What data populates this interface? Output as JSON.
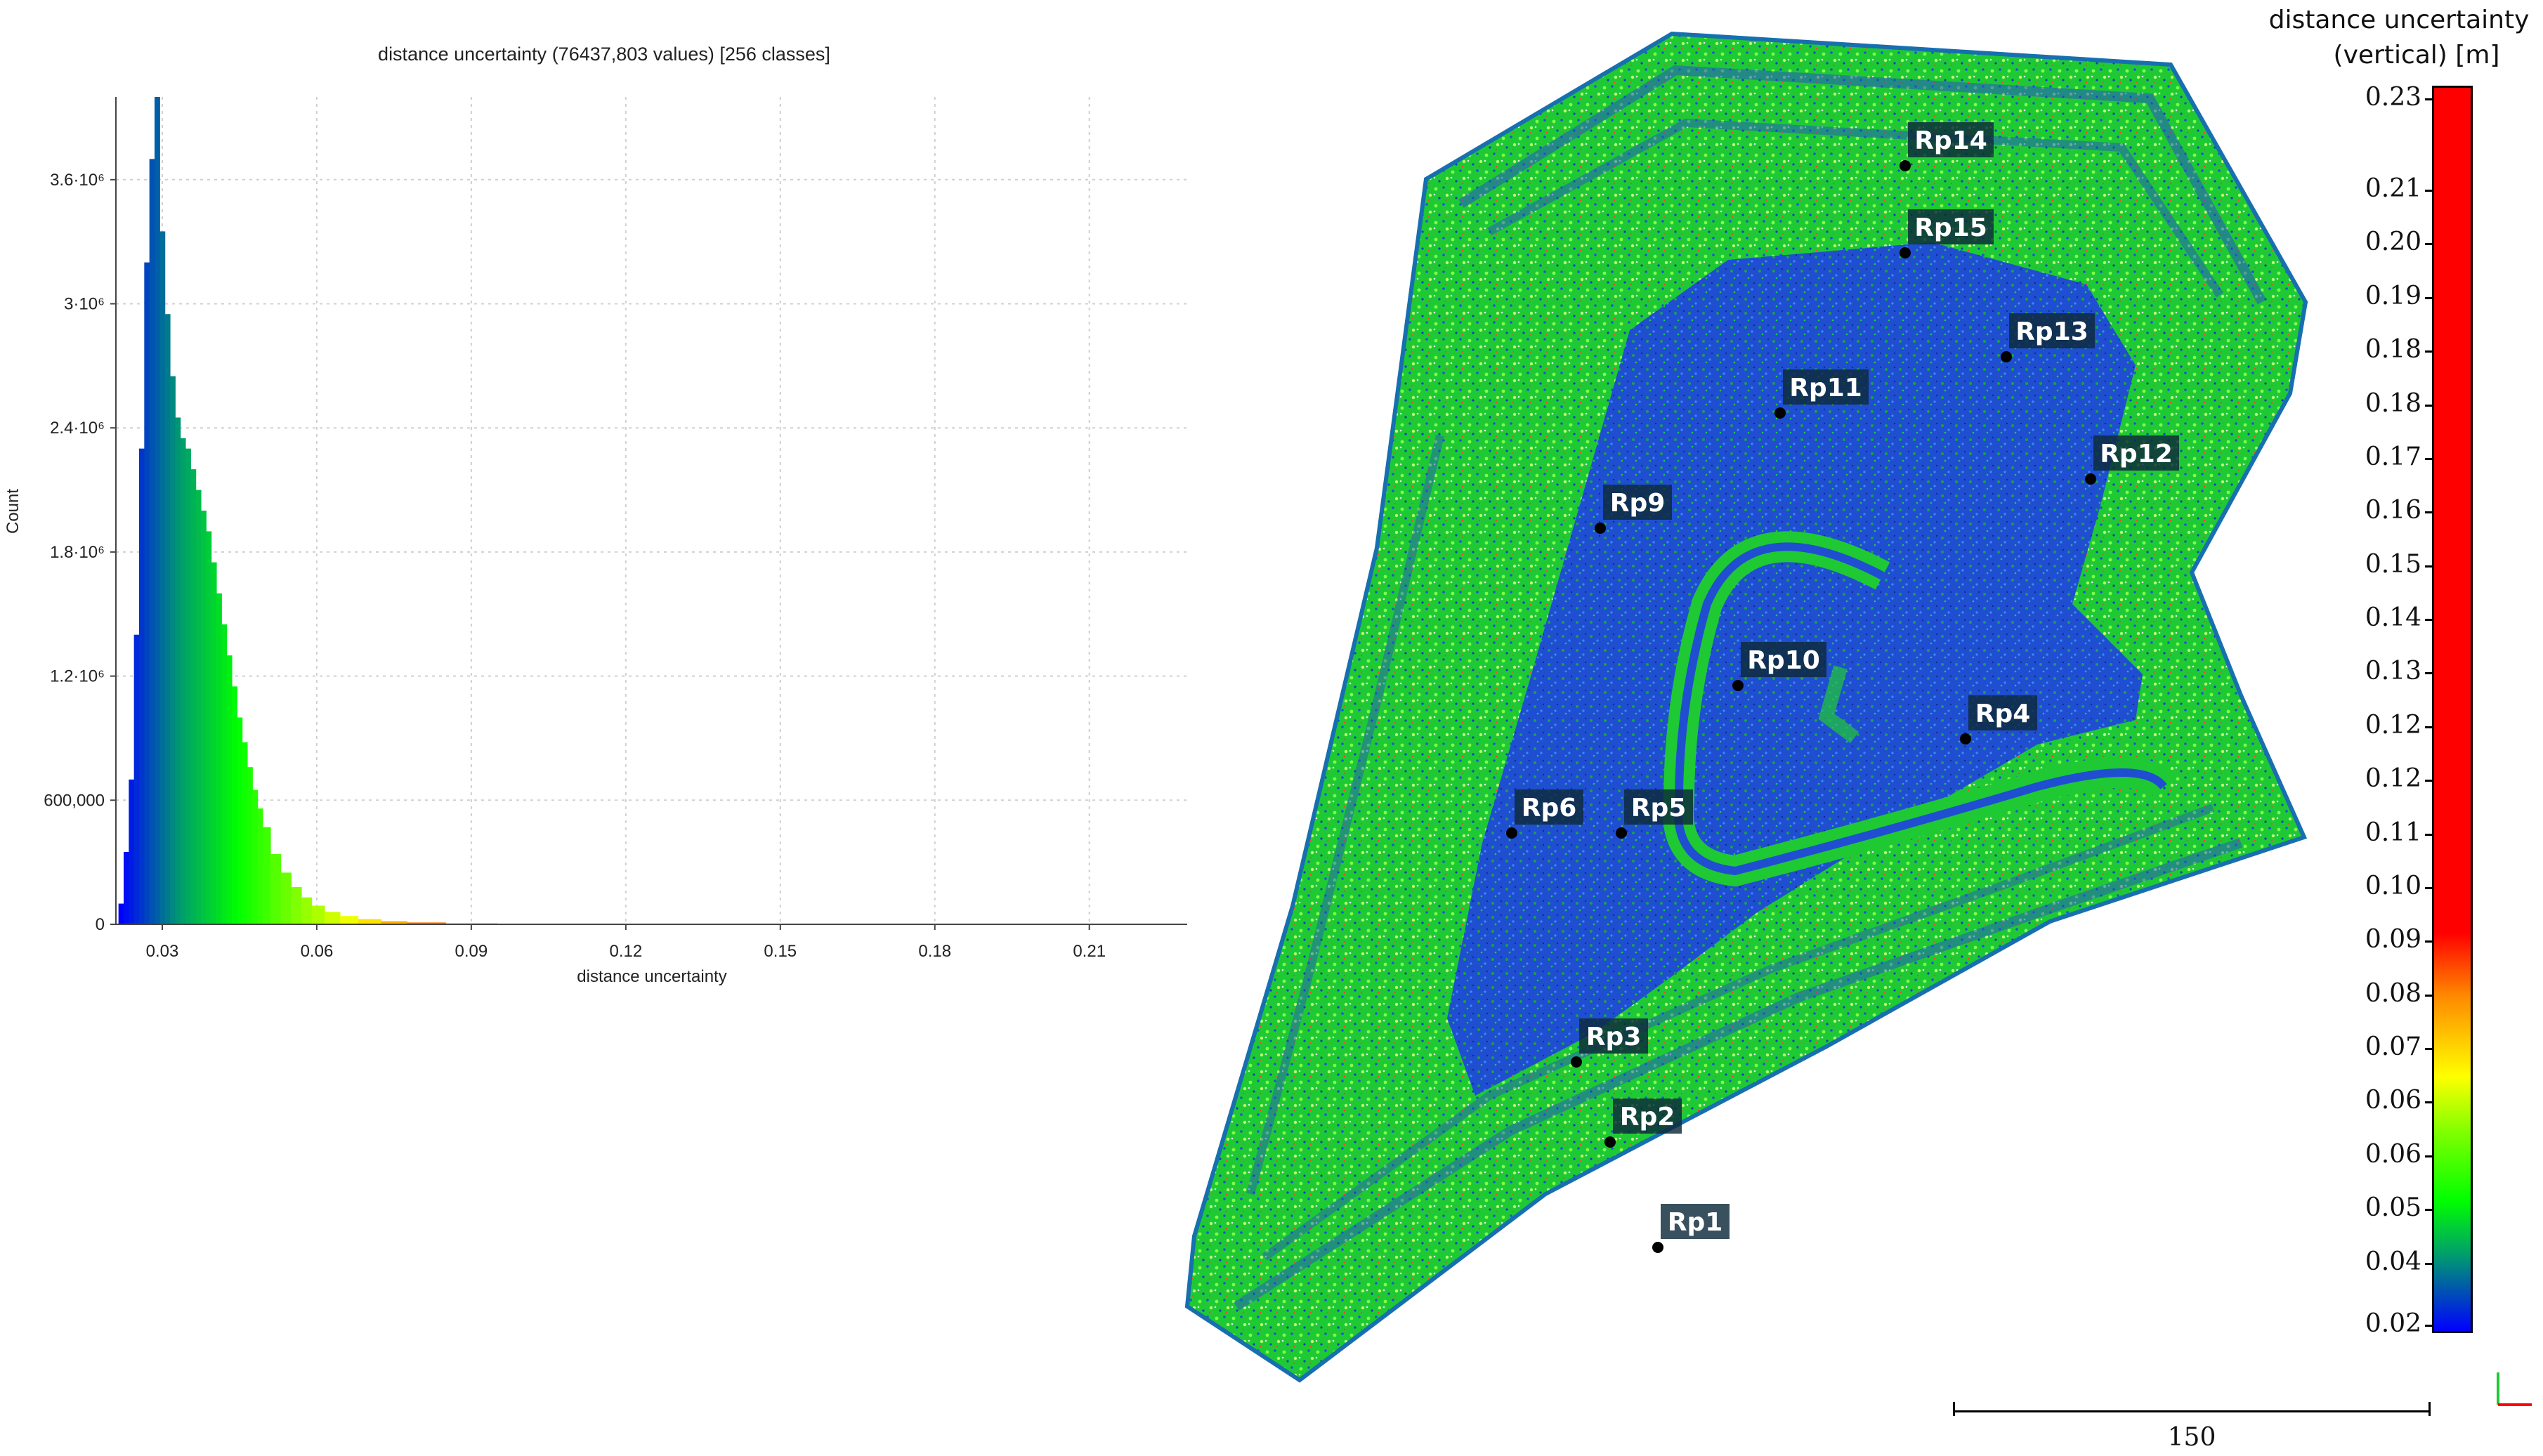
{
  "histogram": {
    "chart_data": {
      "type": "bar",
      "title": "distance uncertainty (76437,803 values)  [256 classes]",
      "xlabel": "distance uncertainty",
      "ylabel": "Count",
      "xlim": [
        0.021,
        0.229
      ],
      "ylim": [
        0,
        4000000
      ],
      "xticks": [
        0.03,
        0.06,
        0.09,
        0.12,
        0.15,
        0.18,
        0.21
      ],
      "xtick_labels": [
        "0.03",
        "0.06",
        "0.09",
        "0.12",
        "0.15",
        "0.18",
        "0.21"
      ],
      "yticks": [
        0,
        600000,
        1200000,
        1800000,
        2400000,
        3000000,
        3600000
      ],
      "ytick_labels": [
        "0",
        "600,000",
        "1.2·10⁶",
        "1.8·10⁶",
        "2.4·10⁶",
        "3·10⁶",
        "3.6·10⁶"
      ],
      "grid": true,
      "x": [
        0.022,
        0.023,
        0.024,
        0.025,
        0.026,
        0.027,
        0.028,
        0.029,
        0.03,
        0.031,
        0.032,
        0.033,
        0.034,
        0.035,
        0.036,
        0.037,
        0.038,
        0.039,
        0.04,
        0.041,
        0.042,
        0.043,
        0.044,
        0.045,
        0.046,
        0.047,
        0.048,
        0.049,
        0.05,
        0.052,
        0.054,
        0.056,
        0.058,
        0.06,
        0.063,
        0.066,
        0.07,
        0.075,
        0.08,
        0.09,
        0.1,
        0.11
      ],
      "values": [
        100000,
        350000,
        700000,
        1400000,
        2300000,
        3200000,
        3700000,
        4000000,
        3350000,
        2950000,
        2650000,
        2450000,
        2350000,
        2300000,
        2200000,
        2100000,
        2000000,
        1900000,
        1750000,
        1600000,
        1450000,
        1300000,
        1150000,
        1000000,
        880000,
        760000,
        650000,
        560000,
        470000,
        340000,
        250000,
        180000,
        130000,
        90000,
        60000,
        40000,
        25000,
        15000,
        9000,
        4000,
        2000,
        800
      ],
      "color_stops": [
        "#0000ff",
        "#009a70",
        "#00ff00",
        "#80ff00",
        "#ffff00",
        "#ff8800",
        "#ff0000"
      ]
    }
  },
  "cloud": {
    "labels": [
      "Rp14",
      "Rp15",
      "Rp13",
      "Rp11",
      "Rp12",
      "Rp9",
      "Rp10",
      "Rp4",
      "Rp6",
      "Rp5",
      "Rp3",
      "Rp2",
      "Rp1"
    ]
  },
  "colorbar": {
    "title_line1": "distance uncertainty",
    "title_line2": "(vertical) [m]",
    "ticks": [
      "0.23",
      "0.21",
      "0.20",
      "0.19",
      "0.18",
      "0.18",
      "0.17",
      "0.16",
      "0.15",
      "0.14",
      "0.13",
      "0.12",
      "0.12",
      "0.11",
      "0.10",
      "0.09",
      "0.08",
      "0.07",
      "0.06",
      "0.06",
      "0.05",
      "0.04",
      "0.02"
    ]
  },
  "scale_bar": {
    "label": "150"
  },
  "colors": {
    "low": "#0000ff",
    "mid": "#00ff00",
    "high": "#ff0000",
    "label_bg": "#0e2a3a"
  }
}
